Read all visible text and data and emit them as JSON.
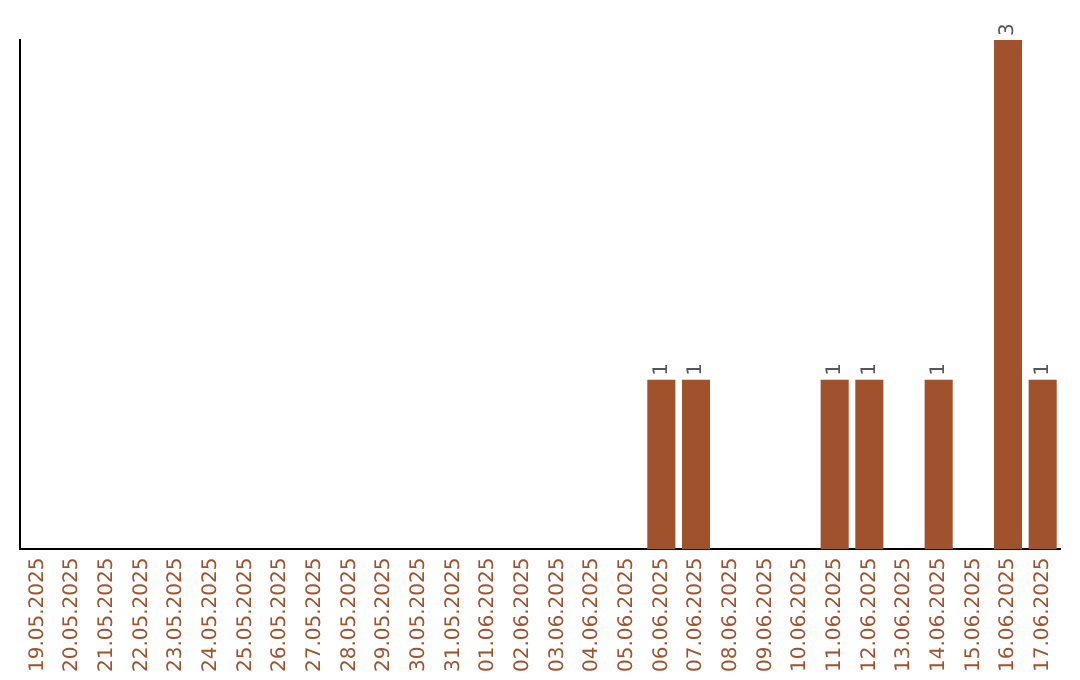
{
  "chart_data": {
    "type": "bar",
    "categories": [
      "19.05.2025",
      "20.05.2025",
      "21.05.2025",
      "22.05.2025",
      "23.05.2025",
      "24.05.2025",
      "25.05.2025",
      "26.05.2025",
      "27.05.2025",
      "28.05.2025",
      "29.05.2025",
      "30.05.2025",
      "31.05.2025",
      "01.06.2025",
      "02.06.2025",
      "03.06.2025",
      "04.06.2025",
      "05.06.2025",
      "06.06.2025",
      "07.06.2025",
      "08.06.2025",
      "09.06.2025",
      "10.06.2025",
      "11.06.2025",
      "12.06.2025",
      "13.06.2025",
      "14.06.2025",
      "15.06.2025",
      "16.06.2025",
      "17.06.2025"
    ],
    "values": [
      null,
      null,
      null,
      null,
      null,
      null,
      null,
      null,
      null,
      null,
      null,
      null,
      null,
      null,
      null,
      null,
      null,
      null,
      1,
      1,
      null,
      null,
      null,
      1,
      1,
      null,
      1,
      null,
      3,
      1
    ],
    "data_labels": true,
    "color": "#a0522d",
    "grid": false,
    "legend": false,
    "tick_labels": "x"
  }
}
